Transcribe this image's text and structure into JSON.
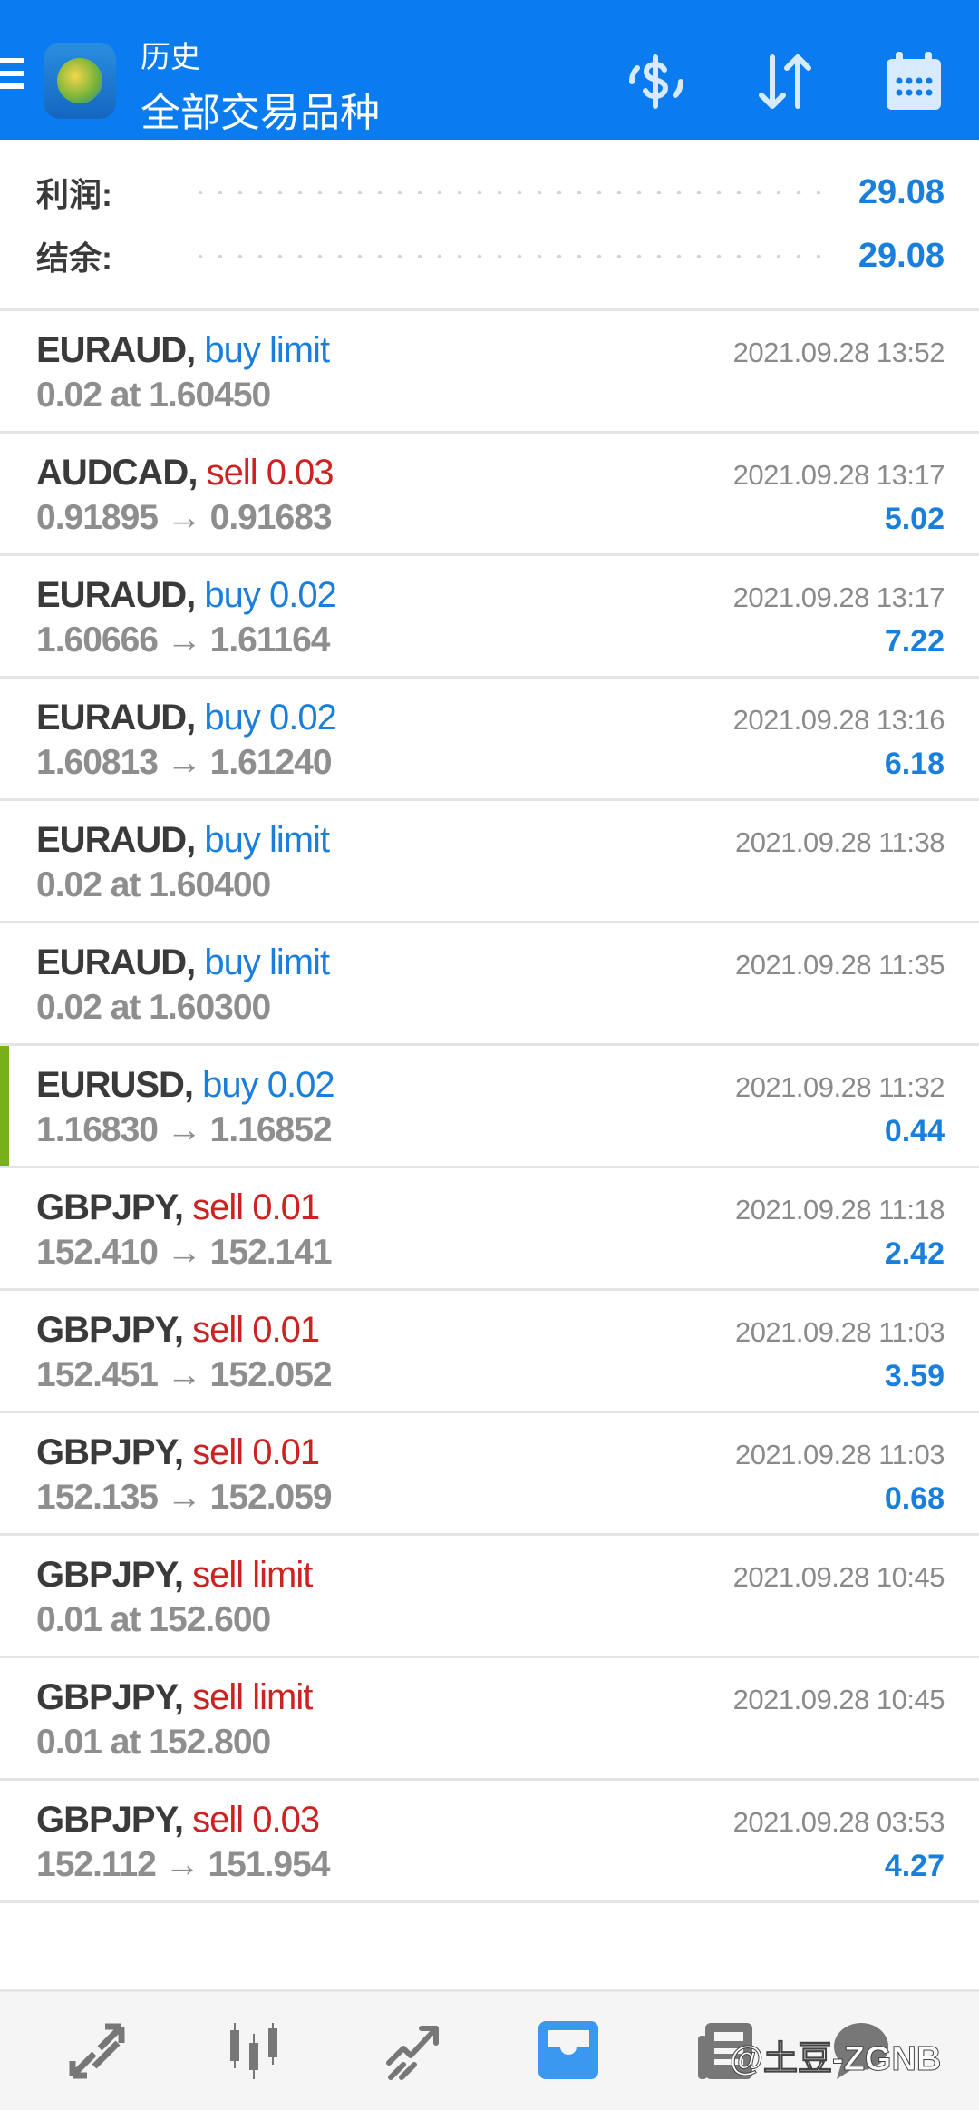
{
  "header": {
    "subtitle": "历史",
    "title": "全部交易品种",
    "icons": [
      "menu-icon",
      "app-logo",
      "currency-exchange-icon",
      "sort-icon",
      "calendar-icon"
    ]
  },
  "summary": {
    "profit_label": "利润:",
    "profit_value": "29.08",
    "balance_label": "结余:",
    "balance_value": "29.08"
  },
  "colors": {
    "header": "#0a7cf0",
    "buy": "#1a7fdc",
    "sell": "#cc2222",
    "profit": "#1a7fdc",
    "marker": "#78b01a"
  },
  "trades": [
    {
      "symbol": "EURAUD,",
      "type": "buy limit",
      "side": "buy",
      "detail": "0.02 at 1.60450",
      "date": "2021.09.28 13:52",
      "profit": ""
    },
    {
      "symbol": "AUDCAD,",
      "type": "sell 0.03",
      "side": "sell",
      "detail": "0.91895 → 0.91683",
      "date": "2021.09.28 13:17",
      "profit": "5.02"
    },
    {
      "symbol": "EURAUD,",
      "type": "buy 0.02",
      "side": "buy",
      "detail": "1.60666 → 1.61164",
      "date": "2021.09.28 13:17",
      "profit": "7.22"
    },
    {
      "symbol": "EURAUD,",
      "type": "buy 0.02",
      "side": "buy",
      "detail": "1.60813 → 1.61240",
      "date": "2021.09.28 13:16",
      "profit": "6.18"
    },
    {
      "symbol": "EURAUD,",
      "type": "buy limit",
      "side": "buy",
      "detail": "0.02 at 1.60400",
      "date": "2021.09.28 11:38",
      "profit": ""
    },
    {
      "symbol": "EURAUD,",
      "type": "buy limit",
      "side": "buy",
      "detail": "0.02 at 1.60300",
      "date": "2021.09.28 11:35",
      "profit": ""
    },
    {
      "symbol": "EURUSD,",
      "type": "buy 0.02",
      "side": "buy",
      "detail": "1.16830 → 1.16852",
      "date": "2021.09.28 11:32",
      "profit": "0.44"
    },
    {
      "symbol": "GBPJPY,",
      "type": "sell 0.01",
      "side": "sell",
      "detail": "152.410 → 152.141",
      "date": "2021.09.28 11:18",
      "profit": "2.42"
    },
    {
      "symbol": "GBPJPY,",
      "type": "sell 0.01",
      "side": "sell",
      "detail": "152.451 → 152.052",
      "date": "2021.09.28 11:03",
      "profit": "3.59"
    },
    {
      "symbol": "GBPJPY,",
      "type": "sell 0.01",
      "side": "sell",
      "detail": "152.135 → 152.059",
      "date": "2021.09.28 11:03",
      "profit": "0.68"
    },
    {
      "symbol": "GBPJPY,",
      "type": "sell limit",
      "side": "sell",
      "detail": "0.01 at 152.600",
      "date": "2021.09.28 10:45",
      "profit": ""
    },
    {
      "symbol": "GBPJPY,",
      "type": "sell limit",
      "side": "sell",
      "detail": "0.01 at 152.800",
      "date": "2021.09.28 10:45",
      "profit": ""
    },
    {
      "symbol": "GBPJPY,",
      "type": "sell 0.03",
      "side": "sell",
      "detail": "152.112 → 151.954",
      "date": "2021.09.28 03:53",
      "profit": "4.27"
    }
  ],
  "nav": {
    "items": [
      "quotes-icon",
      "chart-icon",
      "trade-icon",
      "history-icon",
      "news-icon",
      "chat-icon"
    ],
    "active": "history-icon"
  },
  "watermark": "@土豆-ZGNB"
}
